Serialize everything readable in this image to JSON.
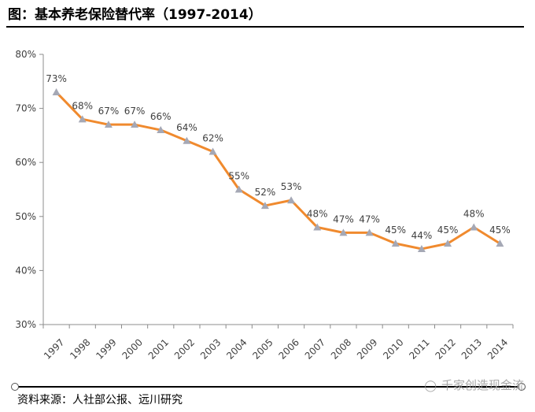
{
  "title": "图：基本养老保险替代率（1997-2014）",
  "source": "资料来源：人社部公报、远川研究",
  "watermark": {
    "text": "千家创造现金流",
    "icon": "wechat-icon"
  },
  "colors": {
    "line": "#F08A2E",
    "marker": "#A5A8B5",
    "axis": "#8C8C8C",
    "text": "#404040"
  },
  "chart_data": {
    "type": "line",
    "title": "",
    "xlabel": "",
    "ylabel": "",
    "categories": [
      "1997",
      "1998",
      "1999",
      "2000",
      "2001",
      "2002",
      "2003",
      "2004",
      "2005",
      "2006",
      "2007",
      "2008",
      "2009",
      "2010",
      "2011",
      "2012",
      "2013",
      "2014"
    ],
    "series": [
      {
        "values": [
          73,
          68,
          67,
          67,
          66,
          64,
          62,
          55,
          52,
          53,
          48,
          47,
          47,
          45,
          44,
          45,
          48,
          45
        ],
        "data_labels": [
          "73%",
          "68%",
          "67%",
          "67%",
          "66%",
          "64%",
          "62%",
          "55%",
          "52%",
          "53%",
          "48%",
          "47%",
          "47%",
          "45%",
          "44%",
          "45%",
          "48%",
          "45%"
        ]
      }
    ],
    "ylim": [
      30,
      80
    ],
    "yticks": [
      "30%",
      "40%",
      "50%",
      "60%",
      "70%",
      "80%"
    ],
    "grid": false,
    "legend": "none"
  }
}
